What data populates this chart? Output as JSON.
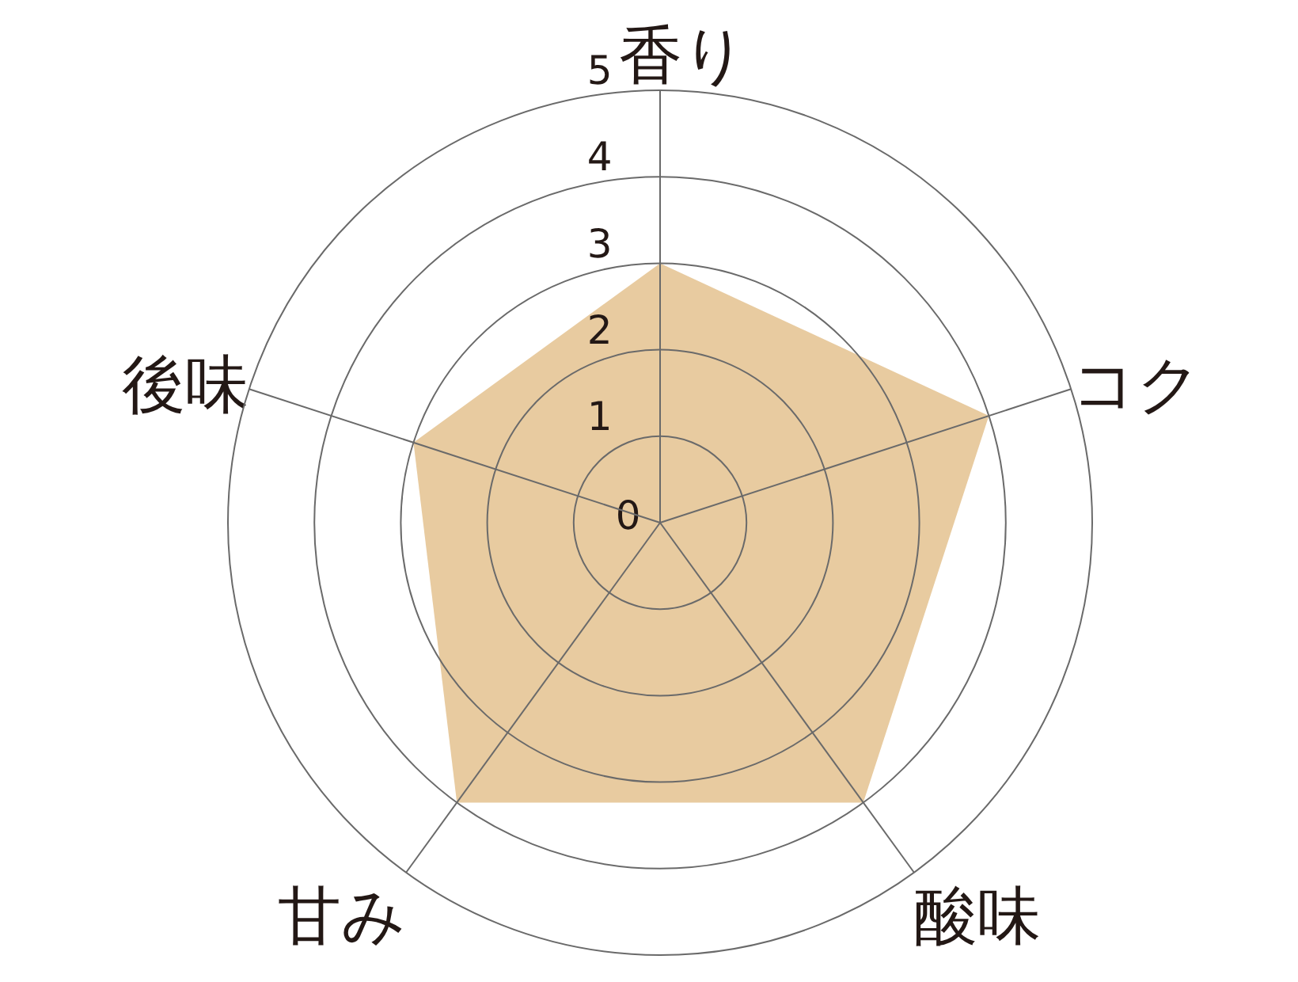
{
  "chart_data": {
    "type": "radar",
    "categories": [
      "香り",
      "コク",
      "酸味",
      "甘み",
      "後味"
    ],
    "series": [
      {
        "color": "#e8cba0",
        "values": [
          3,
          4,
          4,
          4,
          3
        ]
      }
    ],
    "ylim": [
      0,
      5
    ],
    "yticks": [
      0,
      1,
      2,
      3,
      4,
      5
    ],
    "grid": true
  }
}
